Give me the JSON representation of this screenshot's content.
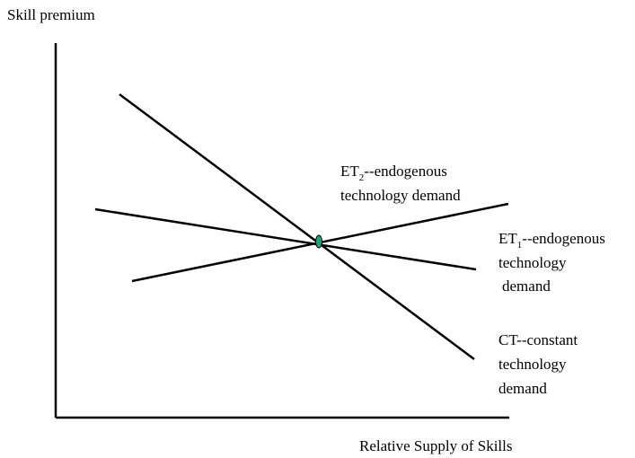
{
  "axes": {
    "y_label": "Skill premium",
    "x_label": "Relative Supply of Skills"
  },
  "curves": [
    {
      "head": {
        "text": "ET",
        "sub": "2",
        "rest": "--endogenous"
      },
      "lines": [
        "technology demand"
      ]
    },
    {
      "head": {
        "text": "ET",
        "sub": "1",
        "rest": "--endogenous"
      },
      "lines": [
        "technology",
        "demand"
      ]
    },
    {
      "lines": [
        "CT--constant",
        "technology",
        "demand"
      ]
    }
  ]
}
